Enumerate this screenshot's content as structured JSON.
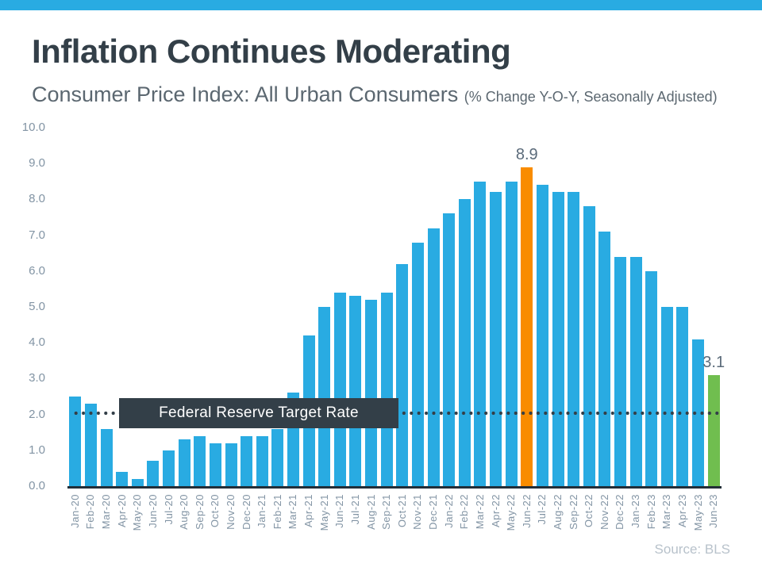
{
  "header": {
    "title": "Inflation Continues Moderating",
    "subtitle": "Consumer Price Index: All Urban Consumers",
    "subtitle_note": "(% Change Y-O-Y, Seasonally Adjusted)"
  },
  "footer": {
    "source": "Source: BLS"
  },
  "colors": {
    "accent": "#29ABE2",
    "title_color": "#333F48",
    "subtitle_color": "#5B6770",
    "axis_label_color": "#8294A4",
    "axis_line_color": "#222E38",
    "value_label_color": "#5B6B7A",
    "target_color": "#333F48",
    "target_box_bg": "#333F48",
    "target_box_text": "#FFFFFF",
    "source_color": "#B8C2CB"
  },
  "chart_data": {
    "type": "bar",
    "title": "Inflation Continues Moderating",
    "subtitle": "Consumer Price Index: All Urban Consumers (% Change Y-O-Y, Seasonally Adjusted)",
    "xlabel": "",
    "ylabel": "",
    "ylim": [
      0,
      10
    ],
    "ytick_step": 1.0,
    "ytick_labels": [
      "0.0",
      "1.0",
      "2.0",
      "3.0",
      "4.0",
      "5.0",
      "6.0",
      "7.0",
      "8.0",
      "9.0",
      "10.0"
    ],
    "grid": false,
    "legend": false,
    "bar_color": "#29ABE2",
    "categories": [
      "Jan-20",
      "Feb-20",
      "Mar-20",
      "Apr-20",
      "May-20",
      "Jun-20",
      "Jul-20",
      "Aug-20",
      "Sep-20",
      "Oct-20",
      "Nov-20",
      "Dec-20",
      "Jan-21",
      "Feb-21",
      "Mar-21",
      "Apr-21",
      "May-21",
      "Jun-21",
      "Jul-21",
      "Aug-21",
      "Sep-21",
      "Oct-21",
      "Nov-21",
      "Dec-21",
      "Jan-22",
      "Feb-22",
      "Mar-22",
      "Apr-22",
      "May-22",
      "Jun-22",
      "Jul-22",
      "Aug-22",
      "Sep-22",
      "Oct-22",
      "Nov-22",
      "Dec-22",
      "Jan-23",
      "Feb-23",
      "Mar-23",
      "Apr-23",
      "May-23",
      "Jun-23"
    ],
    "values": [
      2.5,
      2.3,
      1.6,
      0.4,
      0.2,
      0.7,
      1.0,
      1.3,
      1.4,
      1.2,
      1.2,
      1.4,
      1.4,
      1.6,
      2.6,
      4.2,
      5.0,
      5.4,
      5.3,
      5.2,
      5.4,
      6.2,
      6.8,
      7.2,
      7.6,
      8.0,
      8.5,
      8.2,
      8.5,
      8.9,
      8.4,
      8.2,
      8.2,
      7.8,
      7.1,
      6.4,
      6.4,
      6.0,
      5.0,
      5.0,
      4.1,
      3.1
    ],
    "highlights": [
      {
        "category": "Jun-22",
        "value_label": "8.9",
        "color": "#F98C00"
      },
      {
        "category": "Jun-23",
        "value_label": "3.1",
        "color": "#70BE4F"
      }
    ],
    "reference_line": {
      "value": 2.0,
      "label": "Federal Reserve Target Rate",
      "style": "dotted",
      "color": "#333F48"
    }
  }
}
